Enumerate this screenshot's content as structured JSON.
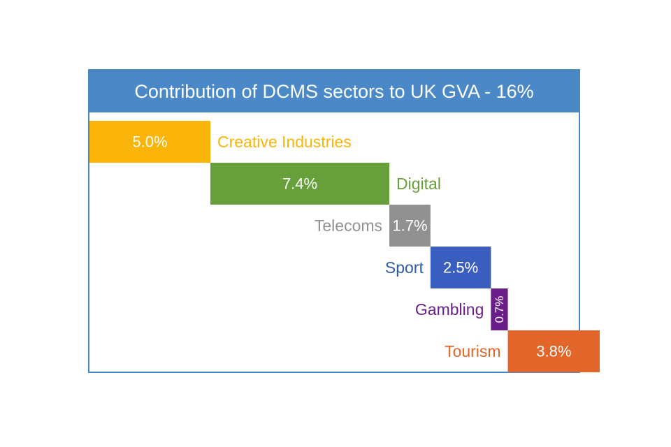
{
  "chart_data": {
    "type": "bar",
    "title": "Contribution of DCMS sectors to UK GVA - 16%",
    "categories": [
      "Creative Industries",
      "Digital",
      "Telecoms",
      "Sport",
      "Gambling",
      "Tourism"
    ],
    "series": [
      {
        "values": [
          5.0,
          7.4,
          1.7,
          2.5,
          0.7,
          3.8
        ],
        "value_labels": [
          "5.0%",
          "7.4%",
          "1.7%",
          "2.5%",
          "0.7%",
          "3.8%"
        ],
        "colors": [
          "#fbb40a",
          "#67a03a",
          "#919191",
          "#3a5ec0",
          "#6a1e8a",
          "#e2652a"
        ]
      }
    ],
    "label_positions": [
      "right",
      "right",
      "left",
      "left",
      "left",
      "left"
    ]
  }
}
